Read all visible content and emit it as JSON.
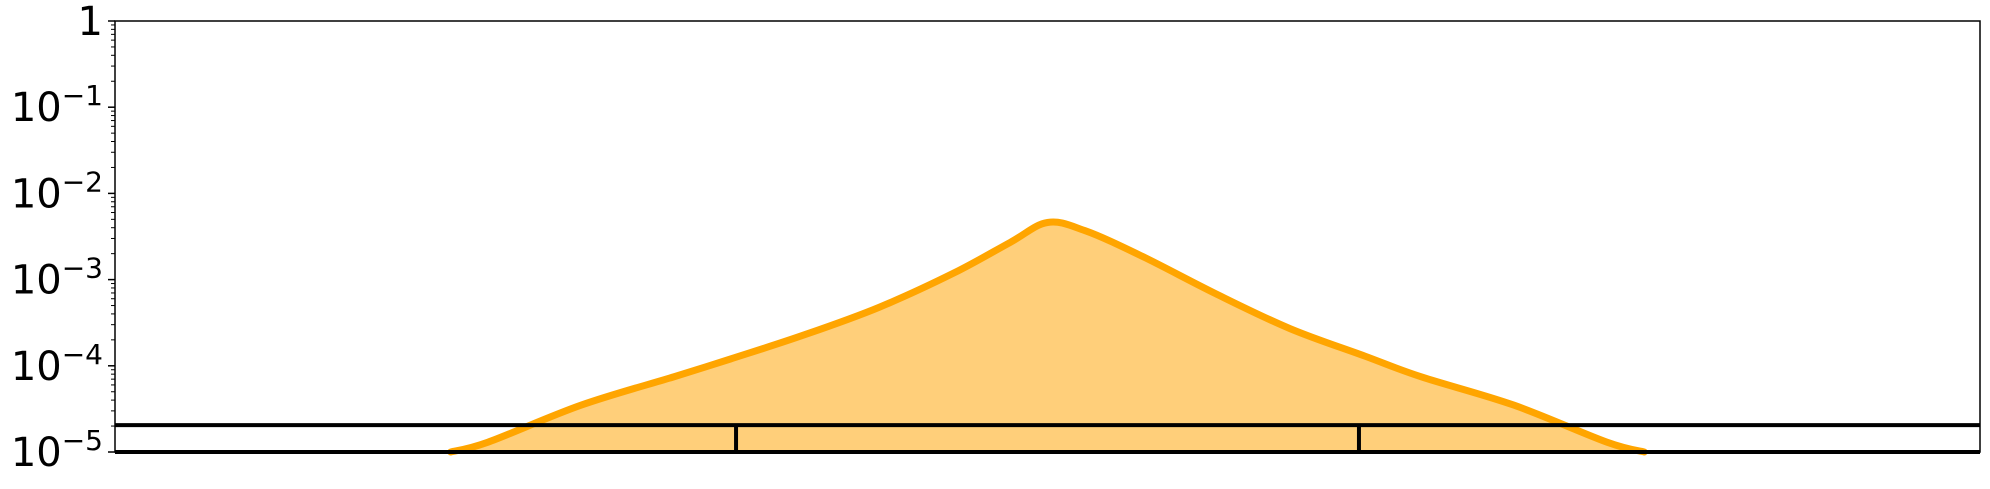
{
  "chart_data": {
    "type": "area",
    "title": "",
    "xlabel": "",
    "ylabel": "",
    "y_scale": "log",
    "ylim": [
      1e-05,
      1
    ],
    "y_ticks": [
      {
        "value": 1,
        "base": "1",
        "exp": ""
      },
      {
        "value": 0.1,
        "base": "10",
        "exp": "−1"
      },
      {
        "value": 0.01,
        "base": "10",
        "exp": "−2"
      },
      {
        "value": 0.001,
        "base": "10",
        "exp": "−3"
      },
      {
        "value": 0.0001,
        "base": "10",
        "exp": "−4"
      },
      {
        "value": 1e-05,
        "base": "10",
        "exp": "−5"
      }
    ],
    "grid": false,
    "series": [
      {
        "color": "#FFA500",
        "fill_color": "#FFCF7A",
        "x": [
          0.18,
          0.2,
          0.25,
          0.3,
          0.33,
          0.37,
          0.41,
          0.45,
          0.48,
          0.5,
          0.52,
          0.55,
          0.59,
          0.63,
          0.67,
          0.7,
          0.75,
          0.8,
          0.82
        ],
        "y": [
          1e-05,
          1.3e-05,
          3.5e-05,
          7.5e-05,
          0.00012,
          0.00023,
          0.00048,
          0.0012,
          0.0027,
          0.0046,
          0.0037,
          0.0019,
          0.00069,
          0.00027,
          0.00013,
          7.5e-05,
          3.5e-05,
          1.3e-05,
          1e-05
        ]
      }
    ],
    "xlim": [
      0,
      1
    ],
    "baseline_band": {
      "low": 1e-05,
      "high": 2.05e-05,
      "dividers": [
        0.333,
        0.667
      ]
    }
  }
}
